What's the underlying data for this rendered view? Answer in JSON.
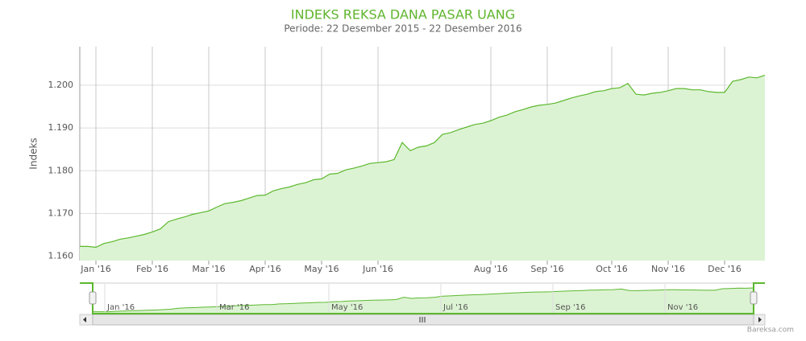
{
  "chart_data": {
    "type": "area",
    "title": "INDEKS REKSA DANA PASAR UANG",
    "subtitle": "Periode: 22 Desember 2015 - 22 Desember 2016",
    "y_label": "Indeks",
    "credit": "Bareksa.com",
    "categories": [
      null,
      null,
      "Jan '16",
      null,
      null,
      null,
      null,
      null,
      null,
      "Feb '16",
      null,
      null,
      null,
      null,
      null,
      null,
      "Mar '16",
      null,
      null,
      null,
      null,
      null,
      null,
      "Apr '16",
      null,
      null,
      null,
      null,
      null,
      null,
      "May '16",
      null,
      null,
      null,
      null,
      null,
      null,
      "Jun '16",
      null,
      null,
      null,
      null,
      null,
      null,
      null,
      null,
      null,
      null,
      null,
      null,
      null,
      "Aug '16",
      null,
      null,
      null,
      null,
      null,
      null,
      "Sep '16",
      null,
      null,
      null,
      null,
      null,
      null,
      null,
      "Oct '16",
      null,
      null,
      null,
      null,
      null,
      null,
      "Nov '16",
      null,
      null,
      null,
      null,
      null,
      null,
      "Dec '16",
      null,
      null,
      null,
      null,
      null
    ],
    "values": [
      1.1623,
      1.1623,
      1.1621,
      1.163,
      1.1634,
      1.164,
      1.1643,
      1.1647,
      1.1651,
      1.1657,
      1.1664,
      1.1681,
      1.1687,
      1.1692,
      1.1698,
      1.1702,
      1.1706,
      1.1715,
      1.1723,
      1.1726,
      1.173,
      1.1736,
      1.1742,
      1.1743,
      1.1753,
      1.1758,
      1.1762,
      1.1768,
      1.1772,
      1.1779,
      1.1781,
      1.1792,
      1.1794,
      1.1802,
      1.1806,
      1.1811,
      1.1817,
      1.1819,
      1.1821,
      1.1826,
      1.1866,
      1.1847,
      1.1855,
      1.1858,
      1.1866,
      1.1885,
      1.1889,
      1.1896,
      1.1902,
      1.1908,
      1.1911,
      1.1917,
      1.1925,
      1.193,
      1.1938,
      1.1943,
      1.1949,
      1.1953,
      1.1955,
      1.1958,
      1.1964,
      1.197,
      1.1975,
      1.1979,
      1.1985,
      1.1987,
      1.1992,
      1.1994,
      1.2004,
      1.1979,
      1.1977,
      1.1981,
      1.1983,
      1.1987,
      1.1992,
      1.1992,
      1.1989,
      1.1989,
      1.1985,
      1.1983,
      1.1983,
      1.2009,
      1.2013,
      1.2019,
      1.2017,
      1.2023
    ],
    "color": "#5cb82e",
    "area_color": "#dcf3d3",
    "ylim": [
      1.159,
      1.209
    ],
    "yticks": [
      {
        "value": 1.16,
        "label": "1.160"
      },
      {
        "value": 1.17,
        "label": "1.170"
      },
      {
        "value": 1.18,
        "label": "1.180"
      },
      {
        "value": 1.19,
        "label": "1.190"
      },
      {
        "value": 1.2,
        "label": "1.200"
      }
    ],
    "grid": true,
    "navigator": {
      "labels": [
        "Jan '16",
        "Mar '16",
        "May '16",
        "Jul '16",
        "Sep '16",
        "Nov '16"
      ]
    }
  }
}
